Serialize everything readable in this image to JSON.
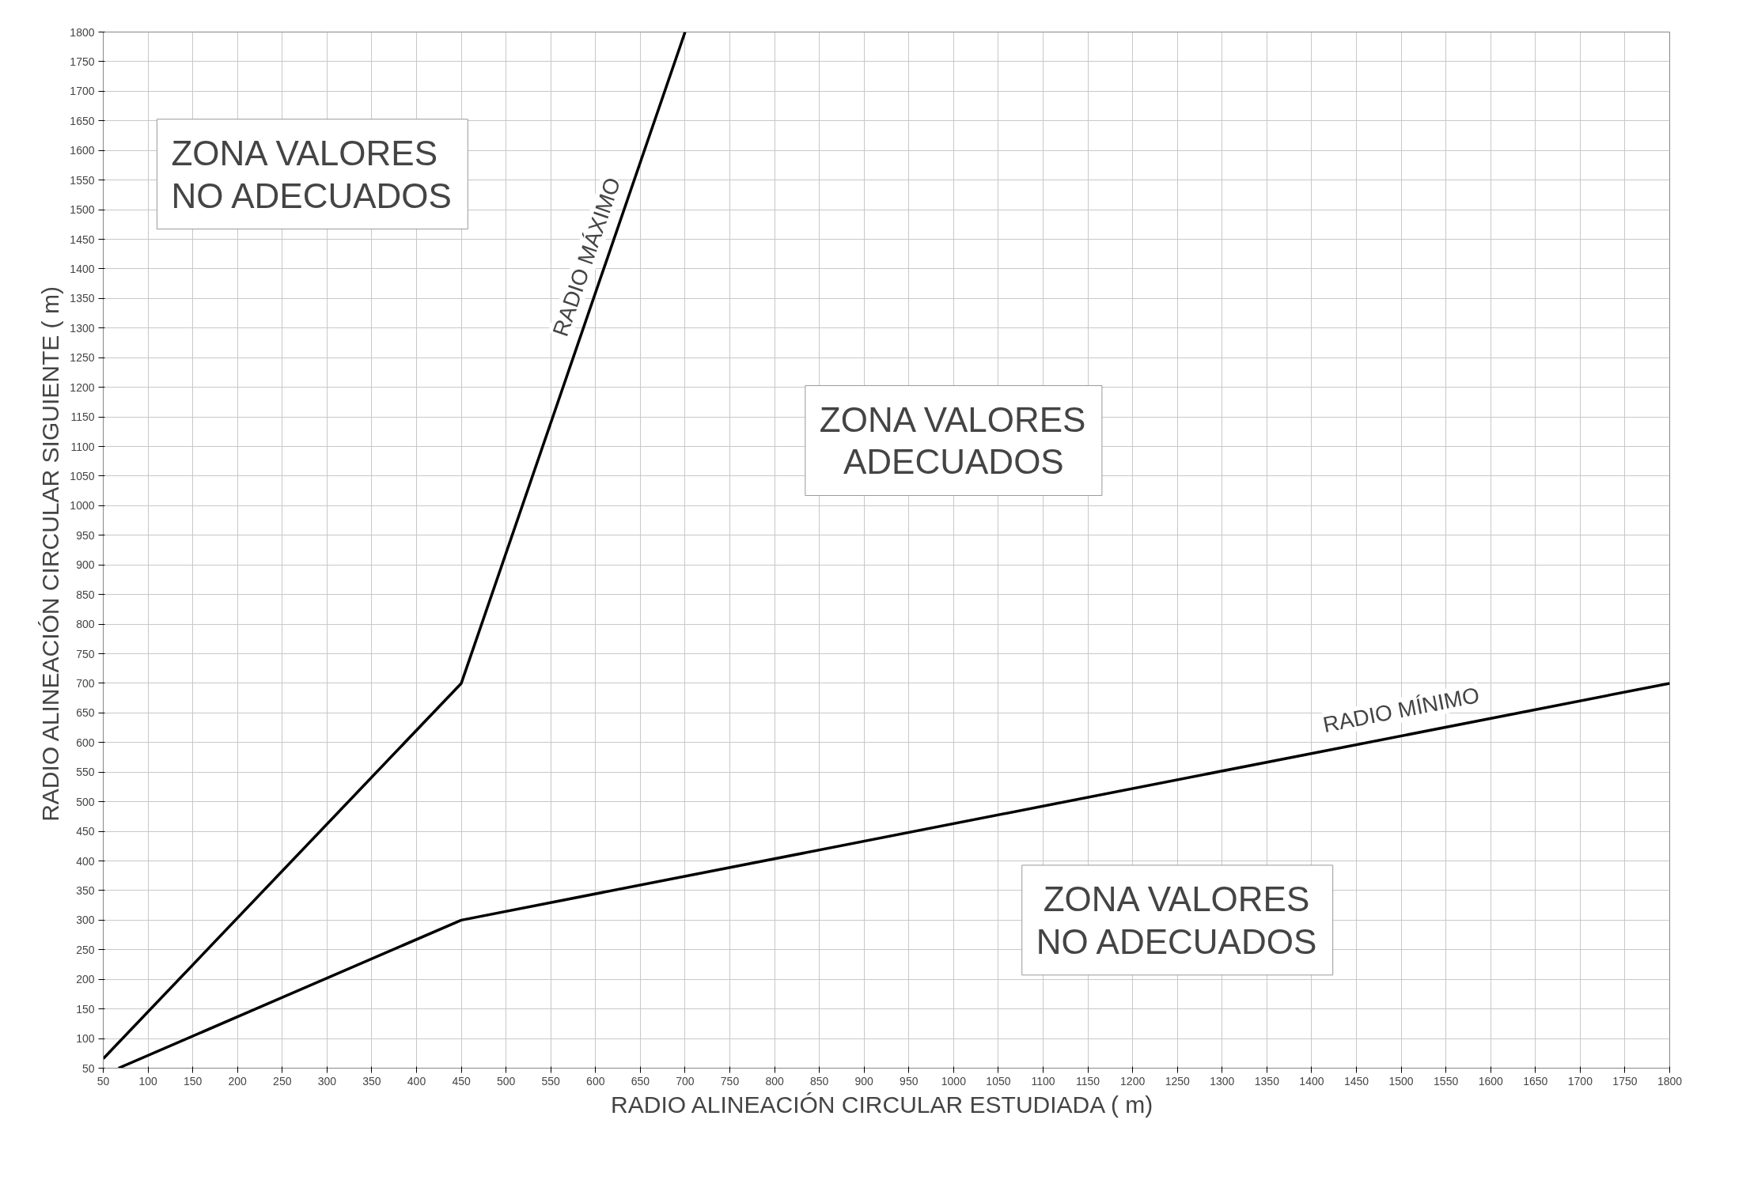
{
  "chart_data": {
    "type": "line",
    "xlabel": "RADIO ALINEACIÓN CIRCULAR ESTUDIADA  ( m)",
    "ylabel": "RADIO ALINEACIÓN CIRCULAR SIGUIENTE  ( m)",
    "series": [
      {
        "color": "#000000",
        "x": [
          50,
          450,
          700
        ],
        "values": [
          66,
          700,
          1800
        ]
      },
      {
        "color": "#000000",
        "x": [
          67,
          450,
          1800
        ],
        "values": [
          50,
          300,
          700
        ]
      }
    ],
    "xlim": [
      50,
      1800
    ],
    "ylim": [
      50,
      1800
    ],
    "xticks": [
      50,
      100,
      150,
      200,
      250,
      300,
      350,
      400,
      450,
      500,
      550,
      600,
      650,
      700,
      750,
      800,
      850,
      900,
      950,
      1000,
      1050,
      1100,
      1150,
      1200,
      1250,
      1300,
      1350,
      1400,
      1450,
      1500,
      1550,
      1600,
      1650,
      1700,
      1750,
      1800
    ],
    "yticks": [
      50,
      100,
      150,
      200,
      250,
      300,
      350,
      400,
      450,
      500,
      550,
      600,
      650,
      700,
      750,
      800,
      850,
      900,
      950,
      1000,
      1050,
      1100,
      1150,
      1200,
      1250,
      1300,
      1350,
      1400,
      1450,
      1500,
      1550,
      1600,
      1650,
      1700,
      1750,
      1800
    ],
    "grid": true,
    "marker": "none",
    "line_style": "solid",
    "annotations": [
      "ZONA VALORES\nNO ADECUADOS",
      "ZONA VALORES\nADECUADOS",
      "ZONA VALORES\nNO ADECUADOS",
      "RADIO MÁXIMO",
      "RADIO MÍNIMO"
    ]
  }
}
